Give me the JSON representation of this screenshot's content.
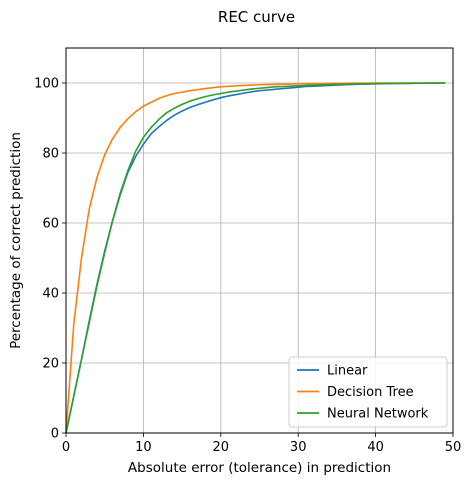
{
  "chart_data": {
    "type": "line",
    "title": "REC curve",
    "xlabel": "Absolute error (tolerance) in prediction",
    "ylabel": "Percentage of correct prediction",
    "xlim": [
      0,
      50
    ],
    "ylim": [
      0,
      110
    ],
    "xticks": [
      0,
      10,
      20,
      30,
      40,
      50
    ],
    "yticks": [
      0,
      20,
      40,
      60,
      80,
      100
    ],
    "grid": true,
    "legend_position": "lower-right",
    "x": [
      0,
      1,
      2,
      3,
      4,
      5,
      6,
      7,
      8,
      9,
      10,
      11,
      12,
      13,
      14,
      15,
      16,
      17,
      18,
      19,
      20,
      21,
      22,
      23,
      24,
      25,
      26,
      27,
      28,
      29,
      30,
      31,
      32,
      33,
      34,
      35,
      36,
      37,
      38,
      39,
      40,
      41,
      42,
      43,
      44,
      45,
      46,
      47,
      48,
      49
    ],
    "series": [
      {
        "name": "Linear",
        "color": "#1f77b4",
        "values": [
          0,
          10.5,
          21,
          32,
          42.5,
          52,
          60.5,
          68,
          74.5,
          79,
          82.5,
          85.5,
          87.5,
          89.3,
          90.8,
          92,
          93,
          93.8,
          94.5,
          95.2,
          95.8,
          96.3,
          96.7,
          97.1,
          97.5,
          97.8,
          98,
          98.2,
          98.4,
          98.6,
          98.8,
          99,
          99.1,
          99.2,
          99.3,
          99.4,
          99.5,
          99.6,
          99.65,
          99.7,
          99.75,
          99.8,
          99.83,
          99.86,
          99.88,
          99.9,
          99.93,
          99.95,
          99.97,
          100
        ]
      },
      {
        "name": "Decision Tree",
        "color": "#ff7f0e",
        "values": [
          0,
          31,
          50,
          64,
          73,
          79.5,
          84,
          87.3,
          89.8,
          91.8,
          93.4,
          94.5,
          95.6,
          96.4,
          97,
          97.4,
          97.8,
          98.1,
          98.4,
          98.7,
          98.9,
          99.05,
          99.2,
          99.3,
          99.4,
          99.5,
          99.55,
          99.6,
          99.65,
          99.7,
          99.75,
          99.8,
          99.83,
          99.86,
          99.88,
          99.9,
          99.92,
          99.94,
          99.95,
          99.96,
          99.97,
          99.98,
          99.98,
          99.99,
          99.99,
          100,
          100,
          100,
          100,
          100
        ]
      },
      {
        "name": "Neural Network",
        "color": "#2ca02c",
        "values": [
          0,
          10.5,
          21,
          31.5,
          42,
          51.5,
          60.5,
          68.5,
          75,
          80.5,
          84.5,
          87.3,
          89.6,
          91.5,
          92.8,
          93.9,
          94.8,
          95.5,
          96.1,
          96.6,
          97,
          97.4,
          97.7,
          98,
          98.3,
          98.5,
          98.7,
          98.9,
          99,
          99.1,
          99.2,
          99.3,
          99.4,
          99.5,
          99.55,
          99.6,
          99.65,
          99.7,
          99.75,
          99.8,
          99.83,
          99.86,
          99.88,
          99.9,
          99.92,
          99.94,
          99.96,
          99.98,
          99.99,
          100
        ]
      }
    ]
  }
}
